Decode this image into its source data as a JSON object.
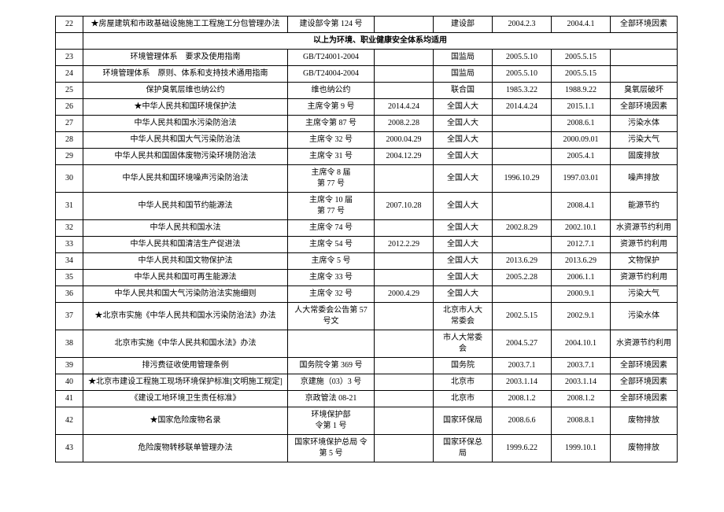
{
  "section_header": "以上为环境、职业健康安全体系均适用",
  "rows": [
    {
      "n": "22",
      "name": "★房屋建筑和市政基础设施施工工程施工分包管理办法",
      "doc": "建设部令第 124 号",
      "d1": "",
      "org": "建设部",
      "d2": "2004.2.3",
      "d3": "2004.4.1",
      "note": "全部环境因素"
    },
    {
      "n": "23",
      "name": "环境管理体系　要求及使用指南",
      "doc": "GB/T24001-2004",
      "d1": "",
      "org": "国监局",
      "d2": "2005.5.10",
      "d3": "2005.5.15",
      "note": ""
    },
    {
      "n": "24",
      "name": "环境管理体系　原则、体系和支持技术通用指南",
      "doc": "GB/T24004-2004",
      "d1": "",
      "org": "国监局",
      "d2": "2005.5.10",
      "d3": "2005.5.15",
      "note": ""
    },
    {
      "n": "25",
      "name": "保护臭氧层维也纳公约",
      "doc": "维也纳公约",
      "d1": "",
      "org": "联合国",
      "d2": "1985.3.22",
      "d3": "1988.9.22",
      "note": "臭氧层破坏"
    },
    {
      "n": "26",
      "name": "★中华人民共和国环境保护法",
      "doc": "主席令第 9 号",
      "d1": "2014.4.24",
      "org": "全国人大",
      "d2": "2014.4.24",
      "d3": "2015.1.1",
      "note": "全部环境因素"
    },
    {
      "n": "27",
      "name": "中华人民共和国水污染防治法",
      "doc": "主席令第 87 号",
      "d1": "2008.2.28",
      "org": "全国人大",
      "d2": "",
      "d3": "2008.6.1",
      "note": "污染水体"
    },
    {
      "n": "28",
      "name": "中华人民共和国大气污染防治法",
      "doc": "主席令 32 号",
      "d1": "2000.04.29",
      "org": "全国人大",
      "d2": "",
      "d3": "2000.09.01",
      "note": "污染大气"
    },
    {
      "n": "29",
      "name": "中华人民共和国固体废物污染环境防治法",
      "doc": "主席令 31 号",
      "d1": "2004.12.29",
      "org": "全国人大",
      "d2": "",
      "d3": "2005.4.1",
      "note": "固废排放"
    },
    {
      "n": "30",
      "name": "中华人民共和国环境噪声污染防治法",
      "doc": "主席令 8 届\n第 77 号",
      "d1": "",
      "org": "全国人大",
      "d2": "1996.10.29",
      "d3": "1997.03.01",
      "note": "噪声排放"
    },
    {
      "n": "31",
      "name": "中华人民共和国节约能源法",
      "doc": "主席令 10 届\n第 77 号",
      "d1": "2007.10.28",
      "org": "全国人大",
      "d2": "",
      "d3": "2008.4.1",
      "note": "能源节约"
    },
    {
      "n": "32",
      "name": "中华人民共和国水法",
      "doc": "主席令 74 号",
      "d1": "",
      "org": "全国人大",
      "d2": "2002.8.29",
      "d3": "2002.10.1",
      "note": "水资源节约利用"
    },
    {
      "n": "33",
      "name": "中华人民共和国清洁生产促进法",
      "doc": "主席令 54 号",
      "d1": "2012.2.29",
      "org": "全国人大",
      "d2": "",
      "d3": "2012.7.1",
      "note": "资源节约利用"
    },
    {
      "n": "34",
      "name": "中华人民共和国文物保护法",
      "doc": "主席令 5 号",
      "d1": "",
      "org": "全国人大",
      "d2": "2013.6.29",
      "d3": "2013.6.29",
      "note": "文物保护"
    },
    {
      "n": "35",
      "name": "中华人民共和国可再生能源法",
      "doc": "主席令 33 号",
      "d1": "",
      "org": "全国人大",
      "d2": "2005.2.28",
      "d3": "2006.1.1",
      "note": "资源节约利用"
    },
    {
      "n": "36",
      "name": "中华人民共和国大气污染防治法实施细则",
      "doc": "主席令 32 号",
      "d1": "2000.4.29",
      "org": "全国人大",
      "d2": "",
      "d3": "2000.9.1",
      "note": "污染大气"
    },
    {
      "n": "37",
      "name": "★北京市实施《中华人民共和国水污染防治法》办法",
      "doc": "人大常委会公告第 57\n号文",
      "d1": "",
      "org": "北京市人大\n常委会",
      "d2": "2002.5.15",
      "d3": "2002.9.1",
      "note": "污染水体"
    },
    {
      "n": "38",
      "name": "北京市实施《中华人民共和国水法》办法",
      "doc": "",
      "d1": "",
      "org": "市人大常委\n会",
      "d2": "2004.5.27",
      "d3": "2004.10.1",
      "note": "水资源节约利用"
    },
    {
      "n": "39",
      "name": "排污费征收使用管理条例",
      "doc": "国务院令第 369 号",
      "d1": "",
      "org": "国务院",
      "d2": "2003.7.1",
      "d3": "2003.7.1",
      "note": "全部环境因素"
    },
    {
      "n": "40",
      "name": "★北京市建设工程施工现场环境保护标准[文明施工规定]",
      "doc": "京建施（03）3 号",
      "d1": "",
      "org": "北京市",
      "d2": "2003.1.14",
      "d3": "2003.1.14",
      "note": "全部环境因素"
    },
    {
      "n": "41",
      "name": "《建设工地环境卫生责任标准》",
      "doc": "京政管法 08-21",
      "d1": "",
      "org": "北京市",
      "d2": "2008.1.2",
      "d3": "2008.1.2",
      "note": "全部环境因素"
    },
    {
      "n": "42",
      "name": "★国家危险废物名录",
      "doc": "环境保护部\n令第 1 号",
      "d1": "",
      "org": "国家环保局",
      "d2": "2008.6.6",
      "d3": "2008.8.1",
      "note": "废物排放"
    },
    {
      "n": "43",
      "name": "危险废物转移联单管理办法",
      "doc": "国家环境保护总局 令\n第 5 号",
      "d1": "",
      "org": "国家环保总\n局",
      "d2": "1999.6.22",
      "d3": "1999.10.1",
      "note": "废物排放"
    }
  ]
}
